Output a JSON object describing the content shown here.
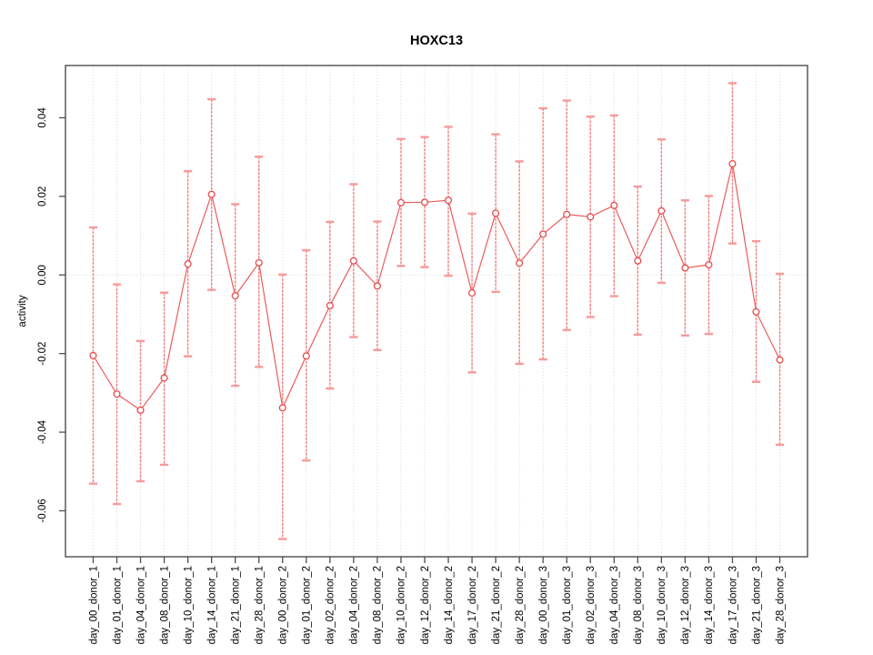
{
  "chart_data": {
    "type": "scatter",
    "subtype": "points-with-error-bars-connected-by-lines",
    "title": "HOXC13",
    "xlabel": "",
    "ylabel": "activity",
    "legend": "none",
    "grid": "vertical dotted gridline at each category; dotted horizontal line at y=0",
    "ylim": [
      -0.0717,
      0.0533
    ],
    "yticks": [
      0.04,
      0.02,
      0.0,
      -0.02,
      -0.04,
      -0.06
    ],
    "categories": [
      "day_00_donor_1",
      "day_01_donor_1",
      "day_04_donor_1",
      "day_08_donor_1",
      "day_10_donor_1",
      "day_14_donor_1",
      "day_21_donor_1",
      "day_28_donor_1",
      "day_00_donor_2",
      "day_01_donor_2",
      "day_02_donor_2",
      "day_04_donor_2",
      "day_08_donor_2",
      "day_10_donor_2",
      "day_12_donor_2",
      "day_14_donor_2",
      "day_17_donor_2",
      "day_21_donor_2",
      "day_28_donor_2",
      "day_00_donor_3",
      "day_01_donor_3",
      "day_02_donor_3",
      "day_04_donor_3",
      "day_08_donor_3",
      "day_10_donor_3",
      "day_12_donor_3",
      "day_14_donor_3",
      "day_17_donor_3",
      "day_21_donor_3",
      "day_28_donor_3"
    ],
    "series": [
      {
        "name": "activity",
        "values": [
          -0.0205,
          -0.0303,
          -0.0344,
          -0.0262,
          0.0028,
          0.0205,
          -0.0053,
          0.0031,
          -0.0338,
          -0.0206,
          -0.0078,
          0.0036,
          -0.0028,
          0.0184,
          0.0185,
          0.019,
          -0.0046,
          0.0157,
          0.003,
          0.0104,
          0.0154,
          0.0148,
          0.0177,
          0.0036,
          0.0163,
          0.0018,
          0.0026,
          0.0283,
          -0.0094,
          -0.0216
        ],
        "upper": [
          0.0121,
          -0.0024,
          -0.0168,
          -0.0045,
          0.0264,
          0.0447,
          0.018,
          0.0301,
          0.0001,
          0.0063,
          0.0135,
          0.0231,
          0.0136,
          0.0346,
          0.0351,
          0.0377,
          0.0156,
          0.0358,
          0.0289,
          0.0424,
          0.0444,
          0.0403,
          0.0406,
          0.0225,
          0.0345,
          0.019,
          0.0201,
          0.0488,
          0.0086,
          0.0003
        ],
        "lower": [
          -0.0531,
          -0.0583,
          -0.0525,
          -0.0483,
          -0.0207,
          -0.0038,
          -0.0282,
          -0.0234,
          -0.0672,
          -0.0472,
          -0.0289,
          -0.0158,
          -0.0191,
          0.0023,
          0.002,
          -0.0002,
          -0.0248,
          -0.0043,
          -0.0226,
          -0.0215,
          -0.014,
          -0.0107,
          -0.0054,
          -0.0152,
          -0.002,
          -0.0154,
          -0.015,
          0.008,
          -0.0272,
          -0.0432
        ]
      }
    ],
    "colors": {
      "point": "#e84a4a",
      "line": "#ea5c5c",
      "error_bar": "#f28080",
      "error_cap": "#f79a9a",
      "grid": "#d6d6d6",
      "axis": "#4d4d4d",
      "text": "#000000",
      "background": "#ffffff"
    }
  }
}
